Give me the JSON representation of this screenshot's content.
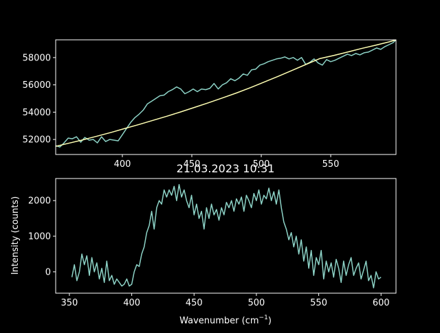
{
  "figure": {
    "background": "#000000",
    "foreground": "#ffffff"
  },
  "chart_data": [
    {
      "type": "line",
      "title": "",
      "xlabel": "",
      "ylabel": "",
      "xlim": [
        352,
        597
      ],
      "ylim": [
        50900,
        59300
      ],
      "grid": false,
      "xticks": [
        400,
        450,
        500,
        550
      ],
      "xtick_labels": [
        "400",
        "450",
        "500",
        "550"
      ],
      "yticks": [
        52000,
        54000,
        56000,
        58000
      ],
      "ytick_labels": [
        "52000",
        "54000",
        "56000",
        "58000"
      ],
      "series": [
        {
          "color": "#8dd3c7",
          "x": [
            352,
            355,
            358,
            361,
            364,
            367,
            370,
            373,
            376,
            379,
            382,
            385,
            388,
            391,
            394,
            397,
            400,
            403,
            406,
            409,
            412,
            415,
            418,
            421,
            424,
            427,
            430,
            433,
            436,
            439,
            442,
            445,
            448,
            451,
            454,
            457,
            460,
            463,
            466,
            469,
            472,
            475,
            478,
            481,
            484,
            487,
            490,
            493,
            496,
            499,
            502,
            505,
            508,
            511,
            514,
            517,
            520,
            523,
            526,
            529,
            532,
            535,
            538,
            541,
            544,
            547,
            550,
            553,
            556,
            559,
            562,
            565,
            568,
            571,
            574,
            577,
            580,
            583,
            586,
            589,
            592,
            595,
            597
          ],
          "y": [
            51550,
            51450,
            51750,
            52100,
            52050,
            52200,
            51800,
            52150,
            51950,
            52000,
            51750,
            52200,
            51850,
            52000,
            51950,
            51900,
            52350,
            52800,
            53250,
            53600,
            53850,
            54150,
            54600,
            54800,
            55000,
            55200,
            55250,
            55500,
            55650,
            55850,
            55700,
            55350,
            55500,
            55700,
            55500,
            55700,
            55650,
            55750,
            56100,
            55700,
            56000,
            56150,
            56450,
            56300,
            56500,
            56800,
            56700,
            57100,
            57150,
            57450,
            57550,
            57700,
            57800,
            57900,
            57950,
            58050,
            57900,
            58000,
            57800,
            58000,
            57500,
            57650,
            57900,
            57600,
            57450,
            57850,
            57700,
            57800,
            57950,
            58100,
            58250,
            58150,
            58300,
            58200,
            58350,
            58400,
            58550,
            58700,
            58600,
            58800,
            58950,
            59100,
            59300
          ]
        },
        {
          "color": "#ffffb3",
          "x": [
            352,
            362,
            372,
            382,
            392,
            402,
            412,
            422,
            432,
            442,
            452,
            462,
            472,
            482,
            492,
            502,
            512,
            522,
            532,
            542,
            552,
            562,
            572,
            582,
            592,
            597
          ],
          "y": [
            51500,
            51740,
            51980,
            52250,
            52520,
            52810,
            53100,
            53400,
            53700,
            54020,
            54350,
            54690,
            55040,
            55400,
            55790,
            56200,
            56620,
            57050,
            57490,
            57920,
            58150,
            58400,
            58660,
            58900,
            59150,
            59290
          ]
        }
      ]
    },
    {
      "type": "line",
      "title": "21.03.2023 10:31",
      "xlabel": "Wavenumber (cm",
      "xlabel_superscript": "−1",
      "xlabel_suffix": ")",
      "ylabel": "Intensity (counts)",
      "xlim": [
        339,
        612
      ],
      "ylim": [
        -600,
        2620
      ],
      "grid": false,
      "xticks": [
        350,
        400,
        450,
        500,
        550,
        600
      ],
      "xtick_labels": [
        "350",
        "400",
        "450",
        "500",
        "550",
        "600"
      ],
      "yticks": [
        0,
        1000,
        2000
      ],
      "ytick_labels": [
        "0",
        "1000",
        "2000"
      ],
      "series": [
        {
          "color": "#8dd3c7",
          "x": [
            352,
            354,
            356,
            358,
            360,
            362,
            364,
            366,
            368,
            370,
            372,
            374,
            376,
            378,
            380,
            382,
            384,
            386,
            388,
            390,
            392,
            394,
            396,
            398,
            400,
            402,
            404,
            406,
            408,
            410,
            412,
            414,
            416,
            418,
            420,
            422,
            424,
            426,
            428,
            430,
            432,
            434,
            436,
            438,
            440,
            442,
            444,
            446,
            448,
            450,
            452,
            454,
            456,
            458,
            460,
            462,
            464,
            466,
            468,
            470,
            472,
            474,
            476,
            478,
            480,
            482,
            484,
            486,
            488,
            490,
            492,
            494,
            496,
            498,
            500,
            502,
            504,
            506,
            508,
            510,
            512,
            514,
            516,
            518,
            520,
            522,
            524,
            526,
            528,
            530,
            532,
            534,
            536,
            538,
            540,
            542,
            544,
            546,
            548,
            550,
            552,
            554,
            556,
            558,
            560,
            562,
            564,
            566,
            568,
            570,
            572,
            574,
            576,
            578,
            580,
            582,
            584,
            586,
            588,
            590,
            592,
            594,
            596,
            598,
            600
          ],
          "y": [
            -150,
            200,
            -250,
            0,
            500,
            200,
            450,
            -100,
            400,
            0,
            250,
            -200,
            100,
            -300,
            300,
            -250,
            -100,
            -350,
            -200,
            -300,
            -400,
            -350,
            -200,
            -400,
            -350,
            0,
            200,
            150,
            500,
            700,
            1100,
            1300,
            1700,
            1200,
            1800,
            2000,
            1900,
            2300,
            2100,
            2300,
            2150,
            2400,
            2000,
            2450,
            2100,
            2300,
            2000,
            1800,
            2150,
            1600,
            1900,
            1500,
            1700,
            1200,
            1800,
            1500,
            1900,
            1600,
            1750,
            1450,
            1800,
            1600,
            1950,
            1800,
            2000,
            1700,
            2050,
            1900,
            2100,
            1700,
            2150,
            2000,
            1800,
            2200,
            2000,
            2300,
            1900,
            2150,
            2050,
            2350,
            2000,
            2250,
            1900,
            2300,
            1800,
            1400,
            1200,
            900,
            1100,
            700,
            1000,
            500,
            900,
            300,
            700,
            100,
            600,
            -100,
            400,
            200,
            600,
            -200,
            300,
            0,
            250,
            -150,
            350,
            100,
            -300,
            300,
            -100,
            200,
            400,
            -100,
            100,
            250,
            -200,
            50,
            300,
            -250,
            -100,
            -450,
            0,
            -200,
            -150
          ],
          "visible_x": [
            355,
            600
          ]
        }
      ]
    }
  ]
}
